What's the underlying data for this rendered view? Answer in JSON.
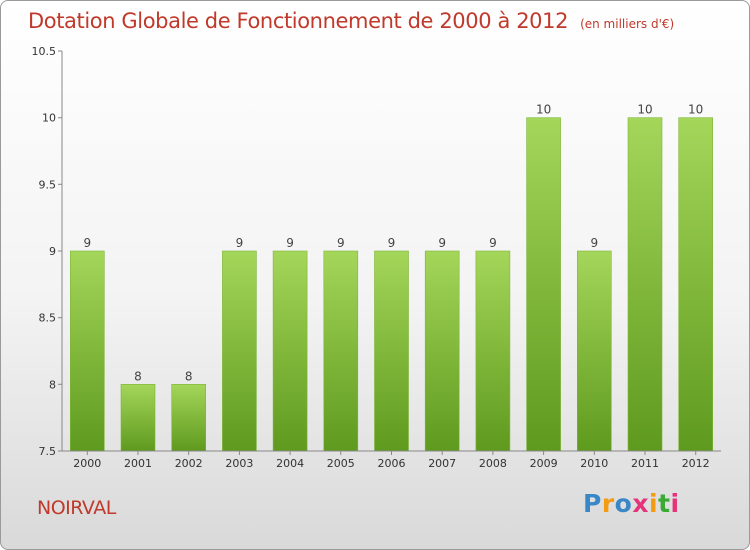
{
  "chart_data": {
    "type": "bar",
    "title": "Dotation Globale de Fonctionnement de 2000 à 2012",
    "subtitle": "(en milliers d'€)",
    "categories": [
      "2000",
      "2001",
      "2002",
      "2003",
      "2004",
      "2005",
      "2006",
      "2007",
      "2008",
      "2009",
      "2010",
      "2011",
      "2012"
    ],
    "values": [
      9,
      8,
      8,
      9,
      9,
      9,
      9,
      9,
      9,
      10,
      9,
      10,
      10
    ],
    "data_labels": [
      "9",
      "8",
      "8",
      "9",
      "9",
      "9",
      "9",
      "9",
      "9",
      "10",
      "9",
      "10",
      "10"
    ],
    "ylim": [
      7.5,
      10.5
    ],
    "yticks": [
      7.5,
      8,
      8.5,
      9,
      9.5,
      10,
      10.5
    ],
    "ytick_labels": [
      "7.5",
      "8",
      "8.5",
      "9",
      "9.5",
      "10",
      "10.5"
    ],
    "grid": false,
    "colors": {
      "bar_light": "#a4d65a",
      "bar_dark": "#5e9a1e",
      "accent": "#c0392b"
    }
  },
  "footer": {
    "commune": "NOIRVAL",
    "brand": [
      "P",
      "r",
      "o",
      "x",
      "i",
      "t",
      "i"
    ],
    "brand_colors": [
      "#3a87c8",
      "#f39c12",
      "#3a87c8",
      "#e5337a",
      "#f39c12",
      "#3aaa35",
      "#e5337a"
    ]
  }
}
